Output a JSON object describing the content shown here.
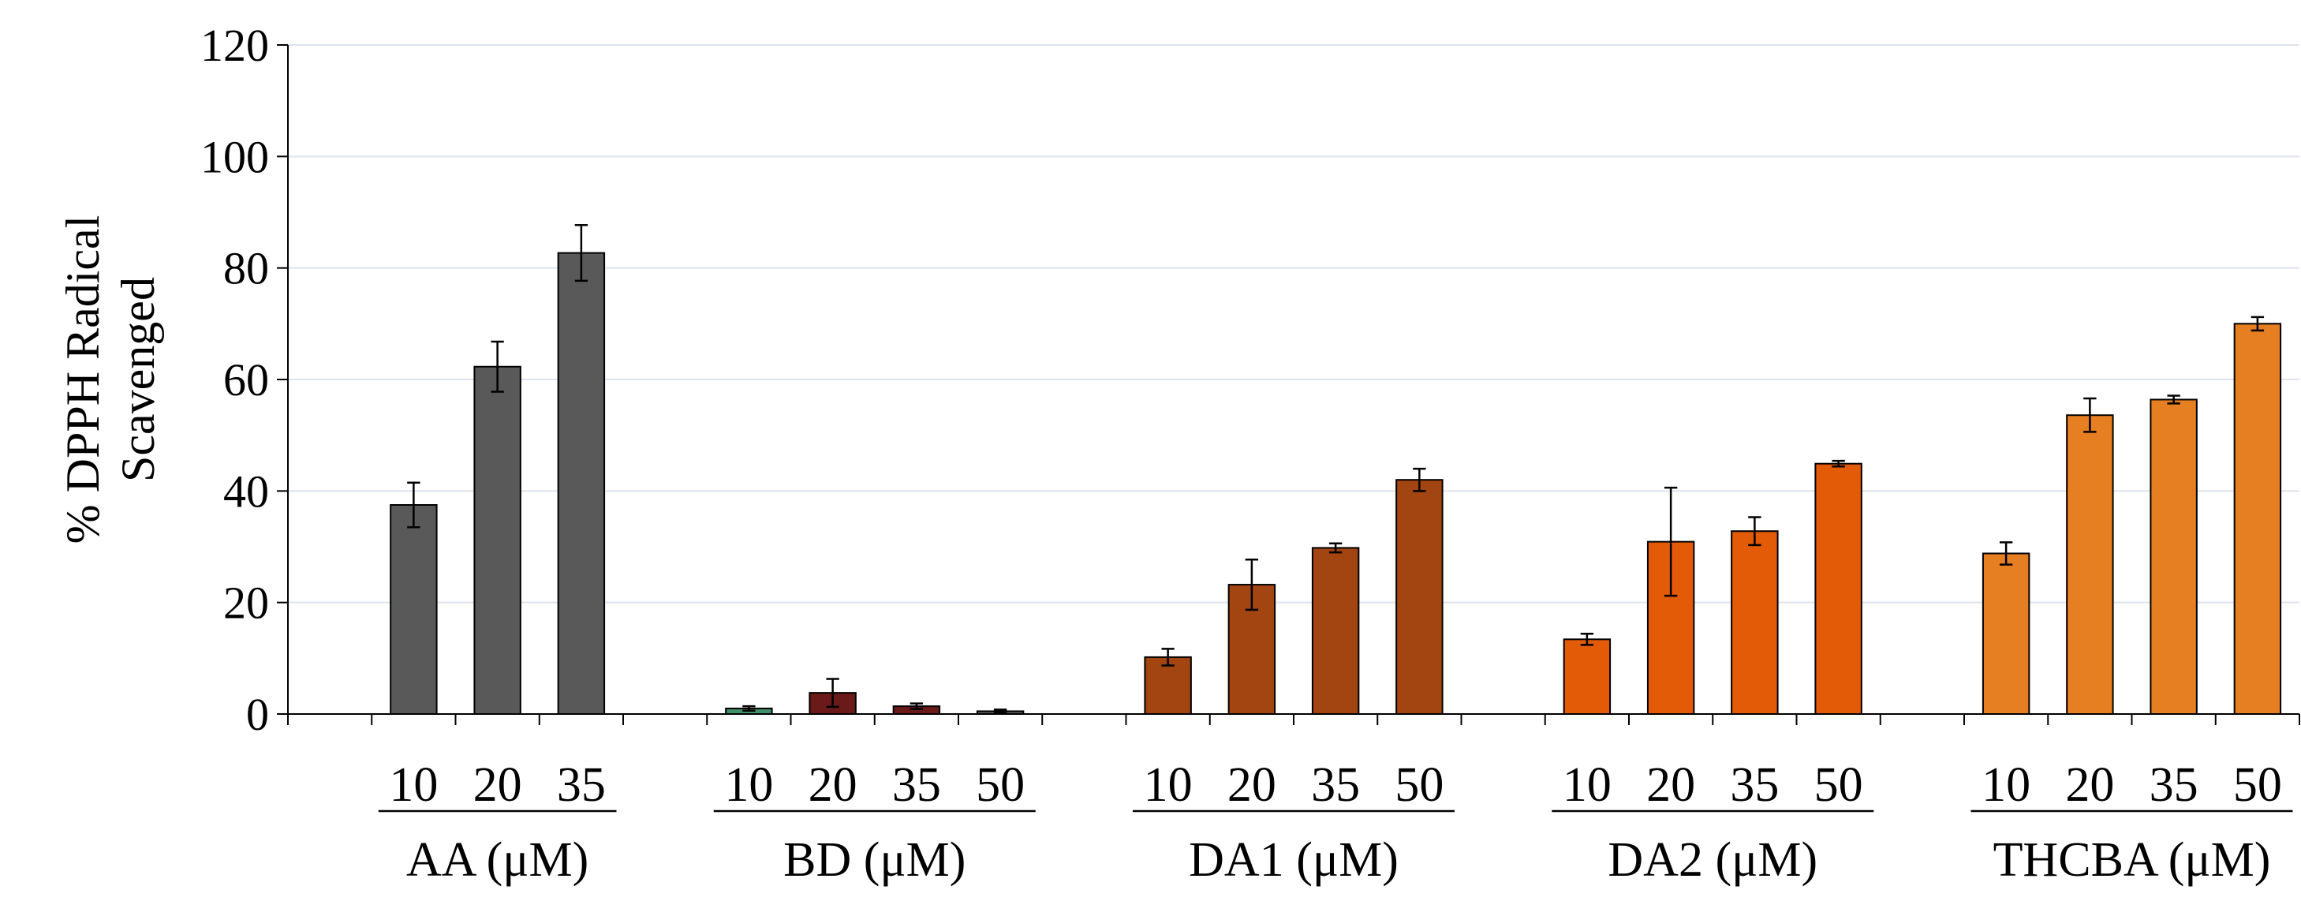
{
  "chart_data": {
    "type": "bar",
    "title": "",
    "xlabel": "",
    "ylabel": "% DPPH Radical Scavenged",
    "ylabel_lines": [
      "% DPPH Radical",
      "Scavenged"
    ],
    "ylim": [
      0,
      120
    ],
    "yticks": [
      0,
      20,
      40,
      60,
      80,
      100,
      120
    ],
    "grid": true,
    "legend": "none",
    "groups": [
      {
        "label": "AA (μM)",
        "color": "#595959",
        "categories": [
          "10",
          "20",
          "35"
        ],
        "values": [
          37.5,
          62.3,
          82.7
        ],
        "errors": [
          4.0,
          4.5,
          5.0
        ]
      },
      {
        "label": "BD (μM)",
        "colors": [
          "#3f8f6a",
          "#6b1a1a",
          "#6b1a1a",
          "#595959"
        ],
        "categories": [
          "10",
          "20",
          "35",
          "50"
        ],
        "values": [
          1.0,
          3.8,
          1.4,
          0.5
        ],
        "errors": [
          0.4,
          2.5,
          0.5,
          0.3
        ]
      },
      {
        "label": "DA1 (μM)",
        "color": "#a34511",
        "categories": [
          "10",
          "20",
          "35",
          "50"
        ],
        "values": [
          10.2,
          23.2,
          29.8,
          42.0
        ],
        "errors": [
          1.5,
          4.5,
          0.8,
          2.0
        ]
      },
      {
        "label": "DA2 (μM)",
        "color": "#e35a07",
        "categories": [
          "10",
          "20",
          "35",
          "50"
        ],
        "values": [
          13.4,
          30.9,
          32.8,
          44.9
        ],
        "errors": [
          1.0,
          9.7,
          2.5,
          0.5
        ]
      },
      {
        "label": "THCBA (μM)",
        "color": "#e67e22",
        "categories": [
          "10",
          "20",
          "35",
          "50"
        ],
        "values": [
          28.8,
          53.6,
          56.4,
          70.0
        ],
        "errors": [
          2.0,
          3.0,
          0.7,
          1.2
        ]
      }
    ]
  }
}
